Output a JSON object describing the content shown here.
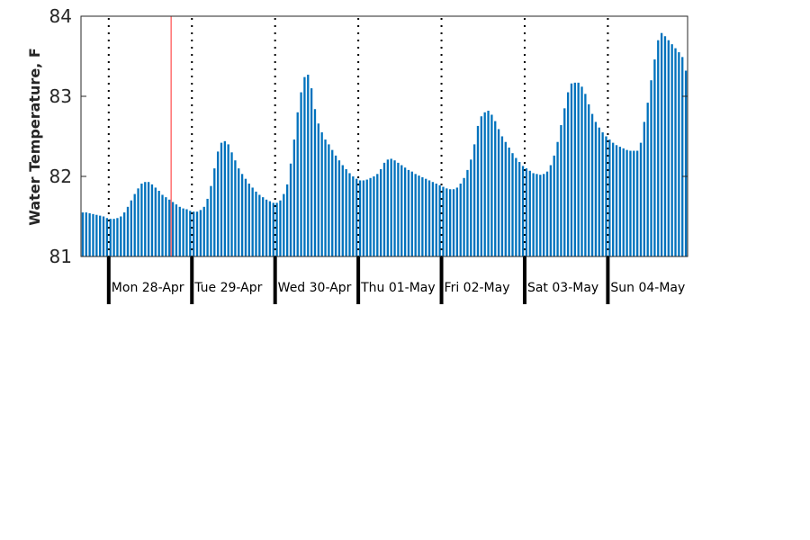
{
  "chart_data": {
    "type": "bar",
    "title": "",
    "xlabel": "",
    "ylabel": "Water Temperature, F",
    "ylim": [
      81,
      84
    ],
    "yticks": [
      "81",
      "82",
      "83",
      "84"
    ],
    "grid": false,
    "bar_color": "#0072bd",
    "marker_color": "#ff4d4d",
    "marker_hours_from_start": 26,
    "hours_before_first_midnight": 8,
    "day_labels": [
      "Mon 28-Apr",
      "Tue 29-Apr",
      "Wed 30-Apr",
      "Thu 01-May",
      "Fri 02-May",
      "Sat 03-May",
      "Sun 04-May"
    ],
    "values": [
      81.55,
      81.55,
      81.54,
      81.53,
      81.52,
      81.51,
      81.5,
      81.48,
      81.47,
      81.47,
      81.48,
      81.5,
      81.55,
      81.62,
      81.7,
      81.78,
      81.85,
      81.91,
      81.93,
      81.93,
      81.9,
      81.86,
      81.82,
      81.77,
      81.74,
      81.71,
      81.68,
      81.65,
      81.62,
      81.6,
      81.59,
      81.57,
      81.56,
      81.56,
      81.58,
      81.62,
      81.72,
      81.88,
      82.1,
      82.31,
      82.42,
      82.44,
      82.4,
      82.3,
      82.2,
      82.1,
      82.03,
      81.97,
      81.91,
      81.86,
      81.81,
      81.77,
      81.74,
      81.71,
      81.69,
      81.67,
      81.67,
      81.7,
      81.78,
      81.9,
      82.16,
      82.46,
      82.8,
      83.05,
      83.24,
      83.27,
      83.1,
      82.84,
      82.66,
      82.55,
      82.46,
      82.4,
      82.33,
      82.26,
      82.2,
      82.14,
      82.09,
      82.04,
      82.0,
      81.97,
      81.95,
      81.95,
      81.96,
      81.98,
      82.0,
      82.03,
      82.09,
      82.17,
      82.21,
      82.22,
      82.2,
      82.17,
      82.14,
      82.11,
      82.08,
      82.06,
      82.03,
      82.01,
      81.99,
      81.97,
      81.95,
      81.93,
      81.91,
      81.89,
      81.87,
      81.85,
      81.84,
      81.84,
      81.86,
      81.91,
      81.98,
      82.08,
      82.21,
      82.4,
      82.63,
      82.75,
      82.8,
      82.82,
      82.77,
      82.69,
      82.59,
      82.5,
      82.43,
      82.36,
      82.29,
      82.23,
      82.18,
      82.13,
      82.1,
      82.07,
      82.04,
      82.03,
      82.02,
      82.03,
      82.06,
      82.14,
      82.26,
      82.43,
      82.64,
      82.85,
      83.05,
      83.16,
      83.17,
      83.17,
      83.12,
      83.03,
      82.9,
      82.78,
      82.68,
      82.61,
      82.55,
      82.5,
      82.46,
      82.42,
      82.39,
      82.37,
      82.35,
      82.33,
      82.32,
      82.32,
      82.32,
      82.42,
      82.68,
      82.92,
      83.2,
      83.46,
      83.7,
      83.79,
      83.75,
      83.7,
      83.65,
      83.6,
      83.55,
      83.49,
      83.32
    ]
  }
}
